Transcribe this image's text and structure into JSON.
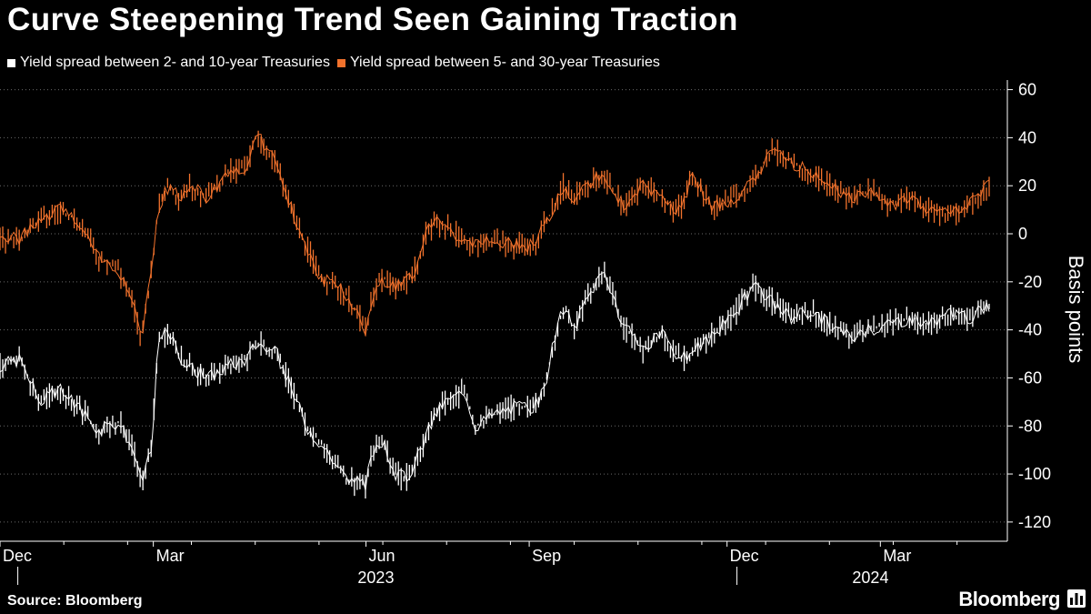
{
  "header": {
    "title": "Curve Steepening Trend Seen Gaining Traction"
  },
  "footer": {
    "source": "Source: Bloomberg",
    "brand": "Bloomberg"
  },
  "chart_data": {
    "type": "line",
    "title": "Curve Steepening Trend Seen Gaining Traction",
    "xlabel": "",
    "ylabel": "Basis points",
    "ylim": [
      -128,
      64
    ],
    "y_ticks": [
      60,
      40,
      20,
      0,
      -20,
      -40,
      -60,
      -80,
      -100,
      -120
    ],
    "x_ticks": [
      "Dec",
      "Mar",
      "Jun",
      "Sep",
      "Dec",
      "Mar"
    ],
    "x_years": [
      "2023",
      "2024"
    ],
    "series": [
      {
        "name": "Yield spread between 2- and 10-year Treasuries",
        "color": "#ffffff",
        "x": [
          0.0,
          0.02,
          0.04,
          0.06,
          0.08,
          0.1,
          0.12,
          0.135,
          0.143,
          0.148,
          0.153,
          0.16,
          0.17,
          0.18,
          0.19,
          0.21,
          0.23,
          0.25,
          0.26,
          0.27,
          0.28,
          0.29,
          0.3,
          0.31,
          0.32,
          0.33,
          0.35,
          0.37,
          0.375,
          0.385,
          0.4,
          0.41,
          0.42,
          0.43,
          0.44,
          0.45,
          0.46,
          0.47,
          0.48,
          0.5,
          0.52,
          0.54,
          0.55,
          0.56,
          0.57,
          0.58,
          0.59,
          0.6,
          0.61,
          0.62,
          0.63,
          0.64,
          0.65,
          0.66,
          0.67,
          0.68,
          0.69,
          0.7,
          0.72,
          0.74,
          0.76,
          0.78,
          0.8,
          0.82,
          0.84,
          0.86,
          0.88,
          0.9,
          0.92,
          0.94,
          0.96,
          0.98,
          1.0
        ],
        "values": [
          -55,
          -52,
          -70,
          -65,
          -72,
          -82,
          -78,
          -90,
          -105,
          -95,
          -90,
          -45,
          -40,
          -50,
          -55,
          -60,
          -55,
          -52,
          -45,
          -48,
          -50,
          -60,
          -70,
          -80,
          -85,
          -90,
          -102,
          -105,
          -92,
          -85,
          -100,
          -102,
          -95,
          -85,
          -75,
          -70,
          -68,
          -65,
          -80,
          -75,
          -72,
          -72,
          -65,
          -45,
          -30,
          -40,
          -30,
          -22,
          -15,
          -25,
          -40,
          -42,
          -48,
          -45,
          -42,
          -48,
          -52,
          -50,
          -42,
          -35,
          -22,
          -28,
          -35,
          -32,
          -38,
          -43,
          -40,
          -37,
          -35,
          -38,
          -34,
          -35,
          -30
        ],
        "noise": 6
      },
      {
        "name": "Yield spread between 5- and 30-year Treasuries",
        "color": "#f2722c",
        "x": [
          0.0,
          0.02,
          0.04,
          0.06,
          0.08,
          0.1,
          0.12,
          0.135,
          0.143,
          0.148,
          0.153,
          0.16,
          0.17,
          0.18,
          0.19,
          0.21,
          0.23,
          0.25,
          0.26,
          0.27,
          0.28,
          0.29,
          0.3,
          0.31,
          0.32,
          0.33,
          0.35,
          0.37,
          0.375,
          0.385,
          0.4,
          0.41,
          0.42,
          0.43,
          0.44,
          0.45,
          0.46,
          0.47,
          0.48,
          0.5,
          0.52,
          0.54,
          0.55,
          0.56,
          0.57,
          0.58,
          0.59,
          0.6,
          0.61,
          0.62,
          0.63,
          0.64,
          0.65,
          0.66,
          0.67,
          0.68,
          0.69,
          0.7,
          0.72,
          0.74,
          0.76,
          0.78,
          0.8,
          0.82,
          0.84,
          0.86,
          0.88,
          0.9,
          0.92,
          0.94,
          0.96,
          0.98,
          1.0
        ],
        "values": [
          -3,
          -2,
          5,
          10,
          5,
          -10,
          -15,
          -30,
          -45,
          -30,
          -15,
          10,
          20,
          15,
          20,
          15,
          25,
          28,
          42,
          35,
          28,
          15,
          5,
          -5,
          -15,
          -20,
          -25,
          -40,
          -30,
          -18,
          -22,
          -20,
          -15,
          0,
          5,
          3,
          0,
          -3,
          -5,
          -3,
          -5,
          -5,
          5,
          10,
          20,
          15,
          18,
          22,
          25,
          18,
          12,
          15,
          20,
          18,
          15,
          10,
          12,
          25,
          10,
          15,
          20,
          35,
          30,
          25,
          20,
          15,
          18,
          12,
          15,
          10,
          8,
          12,
          20
        ],
        "noise": 6
      }
    ]
  }
}
